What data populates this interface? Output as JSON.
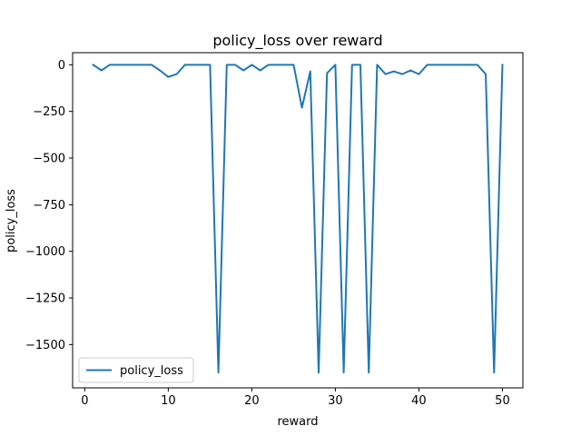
{
  "chart_data": {
    "type": "line",
    "title": "policy_loss over reward",
    "xlabel": "reward",
    "ylabel": "policy_loss",
    "xlim": [
      -1.45,
      52.45
    ],
    "ylim": [
      -1732.0,
      65.0
    ],
    "x_ticks": [
      0,
      10,
      20,
      30,
      40,
      50
    ],
    "x_tick_labels": [
      "0",
      "10",
      "20",
      "30",
      "40",
      "50"
    ],
    "y_ticks": [
      0,
      -250,
      -500,
      -750,
      -1000,
      -1250,
      -1500
    ],
    "y_tick_labels": [
      "0",
      "−250",
      "−500",
      "−750",
      "−1000",
      "−1250",
      "−1500"
    ],
    "grid": false,
    "legend": {
      "position": "lower-left",
      "entries": [
        "policy_loss"
      ]
    },
    "series": [
      {
        "name": "policy_loss",
        "color": "#1f77b4",
        "x": [
          1,
          2,
          3,
          4,
          5,
          6,
          7,
          8,
          9,
          10,
          11,
          12,
          13,
          14,
          15,
          16,
          17,
          18,
          19,
          20,
          21,
          22,
          23,
          24,
          25,
          26,
          27,
          28,
          29,
          30,
          31,
          32,
          33,
          34,
          35,
          36,
          37,
          38,
          39,
          40,
          41,
          42,
          43,
          44,
          45,
          46,
          47,
          48,
          49,
          50
        ],
        "y": [
          0,
          -30,
          0,
          0,
          0,
          0,
          0,
          0,
          -30,
          -65,
          -50,
          0,
          0,
          0,
          0,
          -1650,
          0,
          0,
          -30,
          0,
          -30,
          0,
          0,
          0,
          0,
          -230,
          -35,
          -1650,
          -45,
          0,
          -1650,
          0,
          0,
          -1650,
          0,
          -50,
          -35,
          -50,
          -30,
          -50,
          0,
          0,
          0,
          0,
          0,
          0,
          0,
          -50,
          -1650,
          0
        ]
      }
    ]
  }
}
